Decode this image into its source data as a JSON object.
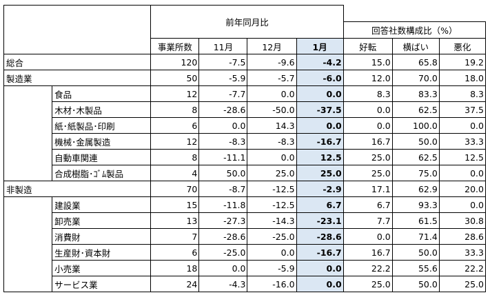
{
  "header": {
    "yoy_group": "前年同月比",
    "ratio_group": "回答社数構成比（%）",
    "cols": [
      "事業所数",
      "11月",
      "12月",
      "1月",
      "好転",
      "横ばい",
      "悪化"
    ]
  },
  "rows": {
    "r0": {
      "label": "総合",
      "v": [
        "120",
        "-7.5",
        "-9.6",
        "-4.2",
        "15.0",
        "65.8",
        "19.2"
      ]
    },
    "r1": {
      "label": "製造業",
      "v": [
        "50",
        "-5.9",
        "-5.7",
        "-6.0",
        "12.0",
        "70.0",
        "18.0"
      ]
    },
    "r2": {
      "label": "食品",
      "v": [
        "12",
        "-7.7",
        "0.0",
        "0.0",
        "8.3",
        "83.3",
        "8.3"
      ]
    },
    "r3": {
      "label": "木材･木製品",
      "v": [
        "8",
        "-28.6",
        "-50.0",
        "-37.5",
        "0.0",
        "62.5",
        "37.5"
      ]
    },
    "r4": {
      "label": "紙･紙製品･印刷",
      "v": [
        "6",
        "0.0",
        "14.3",
        "0.0",
        "0.0",
        "100.0",
        "0.0"
      ]
    },
    "r5": {
      "label": "機械･金属製造",
      "v": [
        "12",
        "-8.3",
        "-8.3",
        "-16.7",
        "16.7",
        "50.0",
        "33.3"
      ]
    },
    "r6": {
      "label": "自動車関連",
      "v": [
        "8",
        "-11.1",
        "0.0",
        "12.5",
        "25.0",
        "62.5",
        "12.5"
      ]
    },
    "r7": {
      "label": "合成樹脂･ｺﾞﾑ製品",
      "v": [
        "4",
        "50.0",
        "25.0",
        "25.0",
        "25.0",
        "75.0",
        "0.0"
      ]
    },
    "r8": {
      "label": "非製造",
      "v": [
        "70",
        "-8.7",
        "-12.5",
        "-2.9",
        "17.1",
        "62.9",
        "20.0"
      ]
    },
    "r9": {
      "label": "建設業",
      "v": [
        "15",
        "-11.8",
        "-12.5",
        "6.7",
        "6.7",
        "93.3",
        "0.0"
      ]
    },
    "r10": {
      "label": "卸売業",
      "v": [
        "13",
        "-27.3",
        "-14.3",
        "-23.1",
        "7.7",
        "61.5",
        "30.8"
      ]
    },
    "r11": {
      "label": "消費財",
      "v": [
        "7",
        "-28.6",
        "-25.0",
        "-28.6",
        "0.0",
        "71.4",
        "28.6"
      ]
    },
    "r12": {
      "label": "生産財･資本財",
      "v": [
        "6",
        "-25.0",
        "0.0",
        "-16.7",
        "16.7",
        "50.0",
        "33.3"
      ]
    },
    "r13": {
      "label": "小売業",
      "v": [
        "18",
        "0.0",
        "-5.9",
        "0.0",
        "22.2",
        "55.6",
        "22.2"
      ]
    },
    "r14": {
      "label": "サービス業",
      "v": [
        "24",
        "-4.3",
        "-16.0",
        "0.0",
        "25.0",
        "50.0",
        "25.0"
      ]
    }
  }
}
